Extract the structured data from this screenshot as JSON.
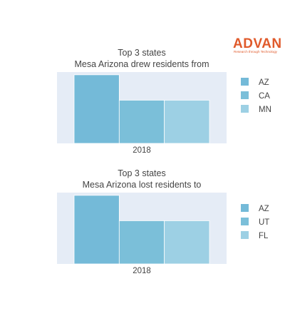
{
  "logo": {
    "name": "ADVAN",
    "tagline": "Research through Technology",
    "color": "#e05a2b"
  },
  "chart_data": [
    {
      "type": "bar",
      "title": [
        "Top 3 states",
        "Mesa Arizona drew residents from"
      ],
      "categories": [
        "2018"
      ],
      "series": [
        {
          "name": "AZ",
          "values": [
            1.0
          ],
          "color": "#74bad8"
        },
        {
          "name": "CA",
          "values": [
            0.63
          ],
          "color": "#7bbfd9"
        },
        {
          "name": "MN",
          "values": [
            0.63
          ],
          "color": "#9dd0e4"
        }
      ],
      "ylim": [
        0,
        1.04
      ],
      "grid": false,
      "legend_position": "right",
      "plot_bgcolor": "#e5ecf6"
    },
    {
      "type": "bar",
      "title": [
        "Top 3 states",
        "Mesa Arizona lost residents to"
      ],
      "categories": [
        "2018"
      ],
      "series": [
        {
          "name": "AZ",
          "values": [
            1.0
          ],
          "color": "#74bad8"
        },
        {
          "name": "UT",
          "values": [
            0.63
          ],
          "color": "#7bbfd9"
        },
        {
          "name": "FL",
          "values": [
            0.63
          ],
          "color": "#9dd0e4"
        }
      ],
      "ylim": [
        0,
        1.04
      ],
      "grid": false,
      "legend_position": "right",
      "plot_bgcolor": "#e5ecf6"
    }
  ]
}
